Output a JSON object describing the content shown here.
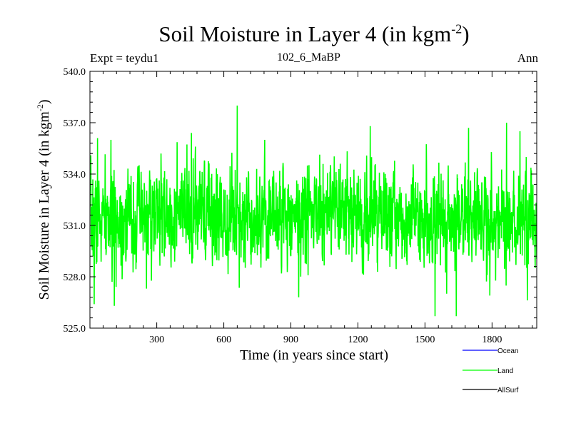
{
  "chart_data": {
    "type": "line",
    "title": "Soil Moisture in Layer 4 (in kgm",
    "title_sup": "-2",
    "title_close": ")",
    "subtitle_left": "Expt = teydu1",
    "subtitle_center": "102_6_MaBP",
    "subtitle_right": "Ann",
    "xlabel": "Time (in years since start)",
    "ylabel": "Soil Moisture in Layer 4 (in kgm",
    "ylabel_sup": "-2",
    "ylabel_close": ")",
    "xlim": [
      1,
      2000
    ],
    "ylim": [
      525.0,
      540.0
    ],
    "x_ticks": [
      300,
      600,
      900,
      1200,
      1500,
      1800
    ],
    "x_tick_labels": [
      "300",
      "600",
      "900",
      "1200",
      "1500",
      "1800"
    ],
    "y_ticks": [
      525.0,
      528.0,
      531.0,
      534.0,
      537.0,
      540.0
    ],
    "y_tick_labels": [
      "525.0",
      "528.0",
      "531.0",
      "534.0",
      "537.0",
      "540.0"
    ],
    "series_style": {
      "mean": 531.3,
      "std": 1.45,
      "n_points": 2000,
      "seed": 7
    },
    "highlights": [
      {
        "x": 20,
        "y": 526.4
      },
      {
        "x": 35,
        "y": 536.1
      },
      {
        "x": 110,
        "y": 526.3
      },
      {
        "x": 455,
        "y": 536.4
      },
      {
        "x": 660,
        "y": 538.0
      },
      {
        "x": 935,
        "y": 526.8
      },
      {
        "x": 1255,
        "y": 536.8
      },
      {
        "x": 1545,
        "y": 525.7
      },
      {
        "x": 1640,
        "y": 525.7
      },
      {
        "x": 1695,
        "y": 536.7
      },
      {
        "x": 1790,
        "y": 526.9
      },
      {
        "x": 1865,
        "y": 537.0
      },
      {
        "x": 1925,
        "y": 536.5
      }
    ],
    "series": [
      {
        "name": "Ocean",
        "color": "#0000ff",
        "values": []
      },
      {
        "name": "Land",
        "color": "#00ff00",
        "values": "generated-see-series_style"
      },
      {
        "name": "AllSurf",
        "color": "#000000",
        "values": []
      }
    ]
  }
}
